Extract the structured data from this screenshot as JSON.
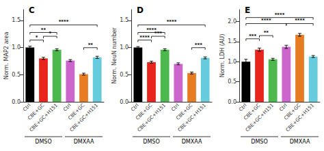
{
  "chart_data": [
    {
      "type": "bar",
      "title": "C",
      "categories": [
        "Ctrl",
        "CBE+GC",
        "CBE+GC+H151",
        "Ctrl",
        "CBE+GC",
        "CBE+GC+H151"
      ],
      "group_labels": [
        "DMSO",
        "DMXAA"
      ],
      "colors": [
        "#000000",
        "#e8241c",
        "#4db84d",
        "#cc66cc",
        "#e87c22",
        "#66ccdd"
      ],
      "values": [
        1.0,
        0.8,
        0.96,
        0.76,
        0.51,
        0.82
      ],
      "errors": [
        0.025,
        0.02,
        0.018,
        0.018,
        0.018,
        0.02
      ],
      "ylabel": "Norm. MAP2 area",
      "ylim": [
        0.0,
        1.7
      ],
      "yticks": [
        {
          "value": 0.0,
          "label": "0.0"
        },
        0.5,
        {
          "value": 1.0,
          "label": "1.0"
        },
        1.5
      ],
      "grid": false,
      "significance": [
        {
          "x1": 0,
          "x2": 1,
          "y": 1.1,
          "text": "*"
        },
        {
          "x1": 1,
          "x2": 2,
          "y": 1.17,
          "text": "*"
        },
        {
          "x1": 0,
          "x2": 2,
          "y": 1.24,
          "text": "**"
        },
        {
          "x1": 0,
          "x2": 5,
          "y": 1.38,
          "text": "****"
        },
        {
          "x1": 4,
          "x2": 5,
          "y": 0.96,
          "text": "**"
        }
      ]
    },
    {
      "type": "bar",
      "title": "D",
      "categories": [
        "Ctrl",
        "CBE+GC",
        "CBE+GC+H151",
        "Ctrl",
        "CBE+GC",
        "CBE+GC+H151"
      ],
      "group_labels": [
        "DMSO",
        "DMXAA"
      ],
      "colors": [
        "#000000",
        "#e8241c",
        "#4db84d",
        "#cc66cc",
        "#e87c22",
        "#66ccdd"
      ],
      "values": [
        1.0,
        0.73,
        0.96,
        0.7,
        0.53,
        0.81
      ],
      "errors": [
        0.018,
        0.018,
        0.018,
        0.018,
        0.018,
        0.018
      ],
      "ylabel": "Norm. NeuN number",
      "ylim": [
        0.0,
        1.7
      ],
      "yticks": [
        {
          "value": 0.0,
          "label": "0.0"
        },
        0.5,
        {
          "value": 1.0,
          "label": "1.0"
        },
        1.5
      ],
      "grid": false,
      "significance": [
        {
          "x1": 0,
          "x2": 1,
          "y": 1.1,
          "text": "****"
        },
        {
          "x1": 1,
          "x2": 2,
          "y": 1.17,
          "text": "***"
        },
        {
          "x1": 0,
          "x2": 2,
          "y": 1.24,
          "text": "****"
        },
        {
          "x1": 0,
          "x2": 5,
          "y": 1.38,
          "text": "****"
        },
        {
          "x1": 4,
          "x2": 5,
          "y": 0.96,
          "text": "***"
        }
      ]
    },
    {
      "type": "bar",
      "title": "E",
      "categories": [
        "Ctrl",
        "CBE+GC",
        "CBE+GC+H151",
        "Ctrl",
        "CBE+GC",
        "CBE+GC+H151"
      ],
      "group_labels": [
        "DMSO",
        "DMXAA"
      ],
      "colors": [
        "#000000",
        "#e8241c",
        "#4db84d",
        "#cc66cc",
        "#e87c22",
        "#66ccdd"
      ],
      "values": [
        1.0,
        1.3,
        1.06,
        1.37,
        1.67,
        1.13
      ],
      "errors": [
        0.06,
        0.04,
        0.025,
        0.04,
        0.035,
        0.025
      ],
      "ylabel": "Norm. LDH (AU)",
      "ylim": [
        0.0,
        2.3
      ],
      "yticks": [
        {
          "value": 0.0,
          "label": "0.0"
        },
        0.5,
        {
          "value": 1.0,
          "label": "1.0"
        },
        1.5,
        {
          "value": 2.0,
          "label": "2.0"
        }
      ],
      "grid": false,
      "significance": [
        {
          "x1": 0,
          "x2": 1,
          "y": 1.52,
          "text": "***"
        },
        {
          "x1": 1,
          "x2": 2,
          "y": 1.6,
          "text": "**"
        },
        {
          "x1": 0,
          "x2": 3,
          "y": 1.9,
          "text": "****"
        },
        {
          "x1": 0,
          "x2": 5,
          "y": 2.05,
          "text": "****"
        },
        {
          "x1": 3,
          "x2": 5,
          "y": 1.9,
          "text": "****"
        }
      ]
    }
  ]
}
